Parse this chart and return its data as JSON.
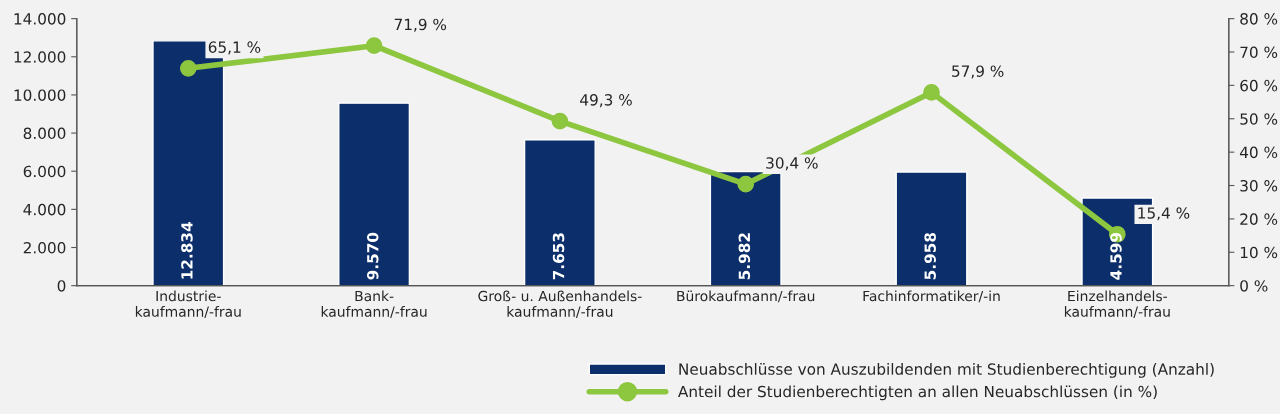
{
  "chart_data": {
    "type": "bar",
    "categories": [
      "Industrie-\nkaufmann/-frau",
      "Bank-\nkaufmann/-frau",
      "Groß- u. Außenhandels-\nkaufmann/-frau",
      "Bürokaufmann/-frau",
      "Fachinformatiker/-in",
      "Einzelhandels-\nkaufmann/-frau"
    ],
    "series": [
      {
        "name": "Neuabschlüsse von Auszubildenden mit Studienberechtigung (Anzahl)",
        "color": "#0c2f6b",
        "values": [
          12834,
          9570,
          7653,
          5982,
          5958,
          4599
        ],
        "value_labels": [
          "12.834",
          "9.570",
          "7.653",
          "5.982",
          "5.958",
          "4.599"
        ]
      },
      {
        "name": "Anteil der Studienberechtigten an allen Neuabschlüssen (in %)",
        "type": "line",
        "axis": "y2",
        "color": "#8dc63f",
        "marker": "circle",
        "values": [
          65.1,
          71.9,
          49.3,
          30.4,
          57.9,
          15.4
        ],
        "value_labels": [
          "65,1 %",
          "71,9 %",
          "49,3 %",
          "30,4 %",
          "57,9 %",
          "15,4 %"
        ]
      }
    ],
    "ylim": [
      0,
      14000
    ],
    "yticks": [
      {
        "value": 0,
        "label": "0"
      },
      {
        "value": 2000,
        "label": "2.000"
      },
      {
        "value": 4000,
        "label": "4.000"
      },
      {
        "value": 6000,
        "label": "6.000"
      },
      {
        "value": 8000,
        "label": "8.000"
      },
      {
        "value": 10000,
        "label": "10.000"
      },
      {
        "value": 12000,
        "label": "12.000"
      },
      {
        "value": 14000,
        "label": "14.000"
      }
    ],
    "y2lim": [
      0,
      80
    ],
    "y2ticks": [
      {
        "value": 0,
        "label": "0 %"
      },
      {
        "value": 10,
        "label": "10 %"
      },
      {
        "value": 20,
        "label": "20 %"
      },
      {
        "value": 30,
        "label": "30 %"
      },
      {
        "value": 40,
        "label": "40 %"
      },
      {
        "value": 50,
        "label": "50 %"
      },
      {
        "value": 60,
        "label": "60 %"
      },
      {
        "value": 70,
        "label": "70 %"
      },
      {
        "value": 80,
        "label": "80 %"
      }
    ],
    "grid": false,
    "legend": "bottom right"
  }
}
